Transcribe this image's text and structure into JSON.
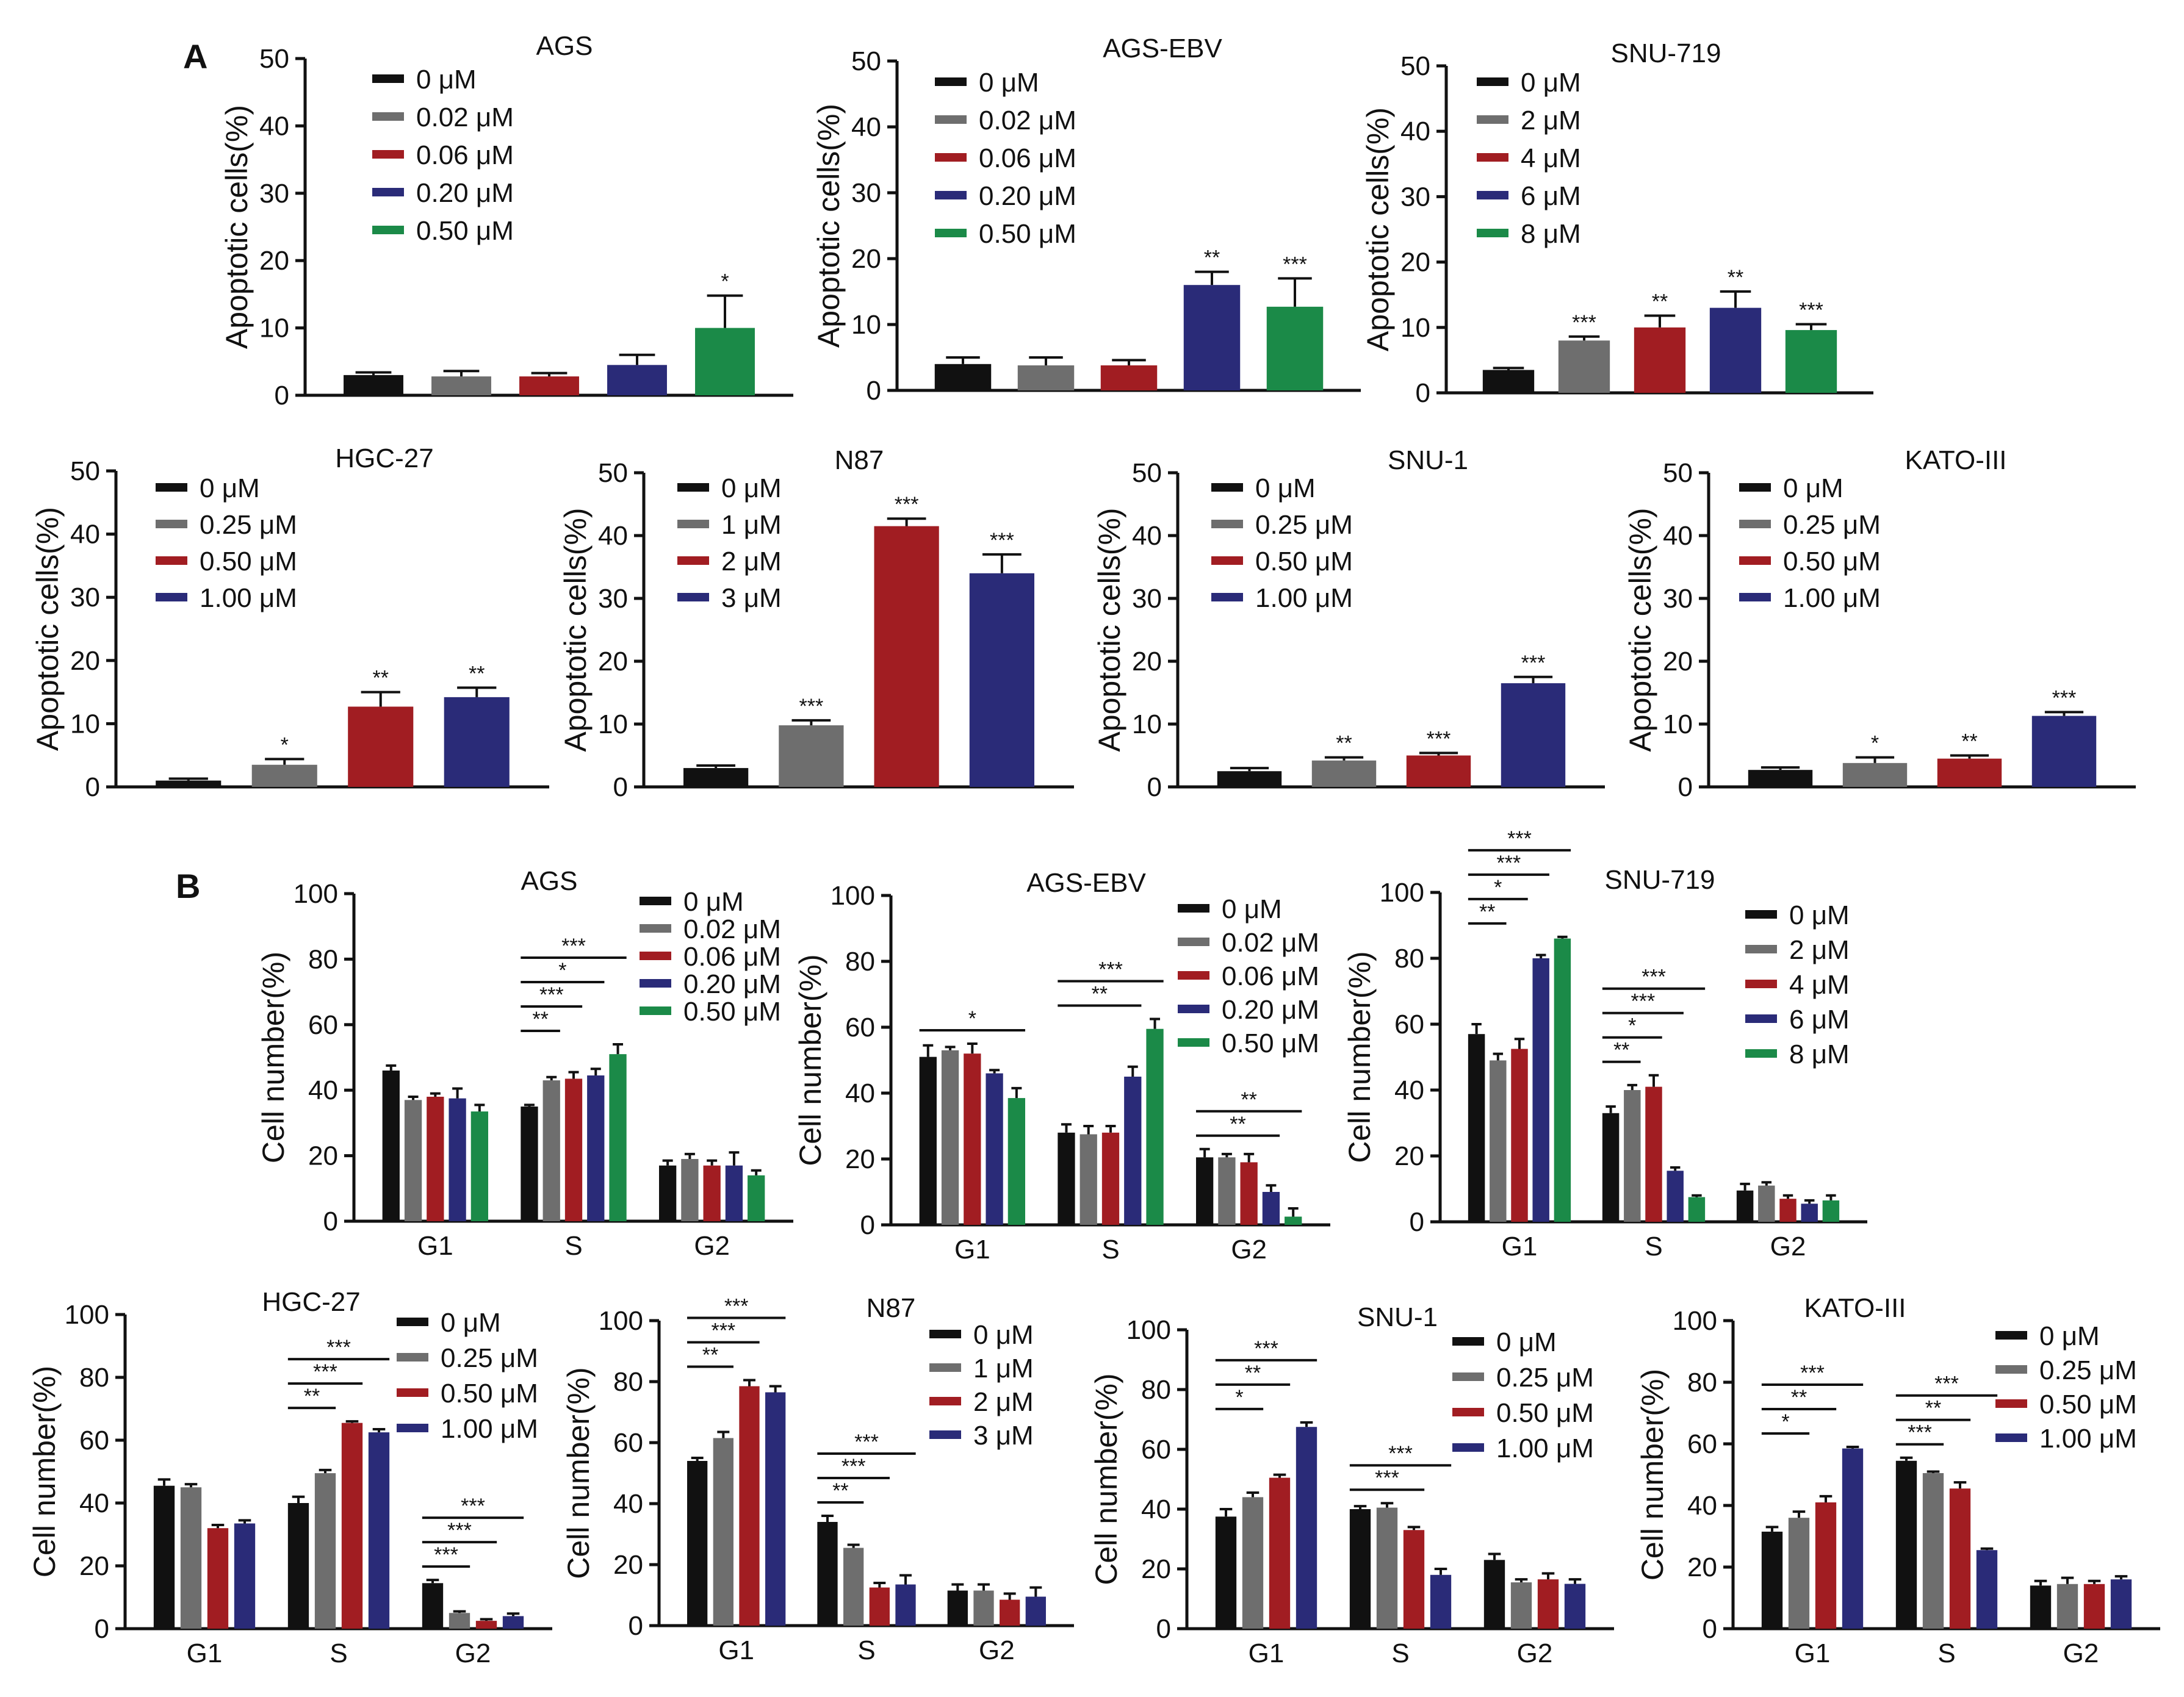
{
  "figure": {
    "panel_labels": [
      "A",
      "B"
    ],
    "colors": [
      "#111111",
      "#6e6e6e",
      "#a11d22",
      "#2a2b78",
      "#1b8a48"
    ]
  },
  "chart_data": [
    {
      "type": "bar",
      "panel": "A",
      "title": "AGS",
      "ylabel": "Apoptotic cells(%)",
      "ylim": [
        0,
        50
      ],
      "yticks": [
        0,
        10,
        20,
        30,
        40,
        50
      ],
      "legend": [
        "0 μM",
        "0.02 μM",
        "0.06 μM",
        "0.20 μM",
        "0.50 μM"
      ],
      "values": [
        3,
        2.8,
        2.8,
        4.5,
        10
      ],
      "errors": [
        0.4,
        0.8,
        0.5,
        1.5,
        4.8
      ],
      "annotations": [
        "",
        "",
        "",
        "",
        "*"
      ]
    },
    {
      "type": "bar",
      "panel": "A",
      "title": "AGS-EBV",
      "ylabel": "Apoptotic cells(%)",
      "ylim": [
        0,
        50
      ],
      "yticks": [
        0,
        10,
        20,
        30,
        40,
        50
      ],
      "legend": [
        "0 μM",
        "0.02 μM",
        "0.06 μM",
        "0.20 μM",
        "0.50 μM"
      ],
      "values": [
        4,
        3.8,
        3.8,
        16,
        12.7
      ],
      "errors": [
        1,
        1.2,
        0.8,
        2,
        4.3
      ],
      "annotations": [
        "",
        "",
        "",
        "**",
        "***"
      ]
    },
    {
      "type": "bar",
      "panel": "A",
      "title": "SNU-719",
      "ylabel": "Apoptotic cells(%)",
      "ylim": [
        0,
        50
      ],
      "yticks": [
        0,
        10,
        20,
        30,
        40,
        50
      ],
      "legend": [
        "0 μM",
        "2 μM",
        "4 μM",
        "6 μM",
        "8 μM"
      ],
      "values": [
        3.5,
        8,
        10,
        13,
        9.6
      ],
      "errors": [
        0.3,
        0.6,
        1.8,
        2.5,
        0.9
      ],
      "annotations": [
        "",
        "***",
        "**",
        "**",
        "***"
      ]
    },
    {
      "type": "bar",
      "panel": "A",
      "title": "HGC-27",
      "ylabel": "Apoptotic cells(%)",
      "ylim": [
        0,
        50
      ],
      "yticks": [
        0,
        10,
        20,
        30,
        40,
        50
      ],
      "legend": [
        "0 μM",
        "0.25 μM",
        "0.50 μM",
        "1.00 μM"
      ],
      "values": [
        1,
        3.5,
        12.7,
        14.2
      ],
      "errors": [
        0.3,
        0.9,
        2.3,
        1.5
      ],
      "annotations": [
        "",
        "*",
        "**",
        "**"
      ]
    },
    {
      "type": "bar",
      "panel": "A",
      "title": "N87",
      "ylabel": "Apoptotic cells(%)",
      "ylim": [
        0,
        50
      ],
      "yticks": [
        0,
        10,
        20,
        30,
        40,
        50
      ],
      "legend": [
        "0 μM",
        "1 μM",
        "2 μM",
        "3 μM"
      ],
      "values": [
        3,
        9.8,
        41.5,
        34
      ],
      "errors": [
        0.4,
        0.8,
        1.2,
        3
      ],
      "annotations": [
        "",
        "***",
        "***",
        "***"
      ]
    },
    {
      "type": "bar",
      "panel": "A",
      "title": "SNU-1",
      "ylabel": "Apoptotic cells(%)",
      "ylim": [
        0,
        50
      ],
      "yticks": [
        0,
        10,
        20,
        30,
        40,
        50
      ],
      "legend": [
        "0 μM",
        "0.25 μM",
        "0.50 μM",
        "1.00 μM"
      ],
      "values": [
        2.5,
        4.2,
        5,
        16.5
      ],
      "errors": [
        0.5,
        0.5,
        0.4,
        1
      ],
      "annotations": [
        "",
        "**",
        "***",
        "***"
      ]
    },
    {
      "type": "bar",
      "panel": "A",
      "title": "KATO-III",
      "ylabel": "Apoptotic cells(%)",
      "ylim": [
        0,
        50
      ],
      "yticks": [
        0,
        10,
        20,
        30,
        40,
        50
      ],
      "legend": [
        "0 μM",
        "0.25 μM",
        "0.50 μM",
        "1.00 μM"
      ],
      "values": [
        2.7,
        3.8,
        4.5,
        11.3
      ],
      "errors": [
        0.4,
        0.9,
        0.5,
        0.6
      ],
      "annotations": [
        "",
        "*",
        "**",
        "***"
      ]
    },
    {
      "type": "bar",
      "panel": "B",
      "title": "AGS",
      "ylabel": "Cell number(%)",
      "ylim": [
        0,
        100
      ],
      "yticks": [
        0,
        20,
        40,
        60,
        80,
        100
      ],
      "categories": [
        "G1",
        "S",
        "G2"
      ],
      "series": [
        {
          "name": "0 μM",
          "values": [
            46,
            35,
            17
          ],
          "errors": [
            1.5,
            0.5,
            1.5
          ]
        },
        {
          "name": "0.02 μM",
          "values": [
            37,
            43,
            19
          ],
          "errors": [
            1,
            1,
            1.5
          ]
        },
        {
          "name": "0.06 μM",
          "values": [
            38,
            43.5,
            17
          ],
          "errors": [
            1,
            2,
            1.5
          ]
        },
        {
          "name": "0.20 μM",
          "values": [
            37.5,
            44.5,
            17
          ],
          "errors": [
            3,
            2,
            4
          ]
        },
        {
          "name": "0.50 μM",
          "values": [
            33.5,
            51,
            14
          ],
          "errors": [
            2,
            3,
            1.5
          ]
        }
      ],
      "brackets": [
        {
          "group": 1,
          "from": 0,
          "to": 1,
          "label": "**"
        },
        {
          "group": 1,
          "from": 0,
          "to": 2,
          "label": "***"
        },
        {
          "group": 1,
          "from": 0,
          "to": 3,
          "label": "*"
        },
        {
          "group": 1,
          "from": 0,
          "to": 4,
          "label": "***"
        }
      ]
    },
    {
      "type": "bar",
      "panel": "B",
      "title": "AGS-EBV",
      "ylabel": "Cell number(%)",
      "ylim": [
        0,
        100
      ],
      "yticks": [
        0,
        20,
        40,
        60,
        80,
        100
      ],
      "categories": [
        "G1",
        "S",
        "G2"
      ],
      "series": [
        {
          "name": "0 μM",
          "values": [
            51,
            28,
            20.5
          ],
          "errors": [
            3.5,
            2.5,
            2.5
          ]
        },
        {
          "name": "0.02 μM",
          "values": [
            53,
            27.5,
            20.5
          ],
          "errors": [
            1,
            2.5,
            1
          ]
        },
        {
          "name": "0.06 μM",
          "values": [
            52,
            28,
            19
          ],
          "errors": [
            3,
            2,
            2.5
          ]
        },
        {
          "name": "0.20 μM",
          "values": [
            46,
            45,
            10
          ],
          "errors": [
            1,
            3,
            2
          ]
        },
        {
          "name": "0.50 μM",
          "values": [
            38.5,
            59.5,
            2.5
          ],
          "errors": [
            3,
            3,
            2.5
          ]
        }
      ],
      "brackets": [
        {
          "group": 0,
          "from": 0,
          "to": 4,
          "label": "*"
        },
        {
          "group": 1,
          "from": 0,
          "to": 3,
          "label": "**"
        },
        {
          "group": 1,
          "from": 0,
          "to": 4,
          "label": "***"
        },
        {
          "group": 2,
          "from": 0,
          "to": 3,
          "label": "**"
        },
        {
          "group": 2,
          "from": 0,
          "to": 4,
          "label": "**"
        }
      ]
    },
    {
      "type": "bar",
      "panel": "B",
      "title": "SNU-719",
      "ylabel": "Cell number(%)",
      "ylim": [
        0,
        100
      ],
      "yticks": [
        0,
        20,
        40,
        60,
        80,
        100
      ],
      "categories": [
        "G1",
        "S",
        "G2"
      ],
      "series": [
        {
          "name": "0 μM",
          "values": [
            57,
            33,
            9.5
          ],
          "errors": [
            3,
            2,
            2
          ]
        },
        {
          "name": "2 μM",
          "values": [
            49,
            40,
            11
          ],
          "errors": [
            2,
            1.5,
            1
          ]
        },
        {
          "name": "4 μM",
          "values": [
            52.5,
            41,
            7
          ],
          "errors": [
            3,
            3.5,
            1
          ]
        },
        {
          "name": "6 μM",
          "values": [
            80,
            15.5,
            5.5
          ],
          "errors": [
            1,
            1,
            1
          ]
        },
        {
          "name": "8 μM",
          "values": [
            86,
            7.5,
            6.5
          ],
          "errors": [
            0.5,
            0.5,
            1.5
          ]
        }
      ],
      "brackets": [
        {
          "group": 0,
          "from": 0,
          "to": 1,
          "label": "**"
        },
        {
          "group": 0,
          "from": 0,
          "to": 2,
          "label": "*"
        },
        {
          "group": 0,
          "from": 0,
          "to": 3,
          "label": "***"
        },
        {
          "group": 0,
          "from": 0,
          "to": 4,
          "label": "***"
        },
        {
          "group": 1,
          "from": 0,
          "to": 1,
          "label": "**"
        },
        {
          "group": 1,
          "from": 0,
          "to": 2,
          "label": "*"
        },
        {
          "group": 1,
          "from": 0,
          "to": 3,
          "label": "***"
        },
        {
          "group": 1,
          "from": 0,
          "to": 4,
          "label": "***"
        }
      ]
    },
    {
      "type": "bar",
      "panel": "B",
      "title": "HGC-27",
      "ylabel": "Cell number(%)",
      "ylim": [
        0,
        100
      ],
      "yticks": [
        0,
        20,
        40,
        60,
        80,
        100
      ],
      "categories": [
        "G1",
        "S",
        "G2"
      ],
      "series": [
        {
          "name": "0 μM",
          "values": [
            45.5,
            40,
            14.5
          ],
          "errors": [
            2,
            2,
            1
          ]
        },
        {
          "name": "0.25 μM",
          "values": [
            45,
            49.5,
            5
          ],
          "errors": [
            1,
            1,
            0.5
          ]
        },
        {
          "name": "0.50 μM",
          "values": [
            32,
            65.5,
            2.5
          ],
          "errors": [
            1,
            0.5,
            0.5
          ]
        },
        {
          "name": "1.00 μM",
          "values": [
            33.5,
            62.5,
            4
          ],
          "errors": [
            1,
            1,
            0.8
          ]
        }
      ],
      "brackets": [
        {
          "group": 1,
          "from": 0,
          "to": 1,
          "label": "**"
        },
        {
          "group": 1,
          "from": 0,
          "to": 2,
          "label": "***"
        },
        {
          "group": 1,
          "from": 0,
          "to": 3,
          "label": "***"
        },
        {
          "group": 2,
          "from": 0,
          "to": 1,
          "label": "***"
        },
        {
          "group": 2,
          "from": 0,
          "to": 2,
          "label": "***"
        },
        {
          "group": 2,
          "from": 0,
          "to": 3,
          "label": "***"
        }
      ]
    },
    {
      "type": "bar",
      "panel": "B",
      "title": "N87",
      "ylabel": "Cell number(%)",
      "ylim": [
        0,
        100
      ],
      "yticks": [
        0,
        20,
        40,
        60,
        80,
        100
      ],
      "categories": [
        "G1",
        "S",
        "G2"
      ],
      "series": [
        {
          "name": "0 μM",
          "values": [
            54,
            34,
            11.5
          ],
          "errors": [
            1,
            2,
            2
          ]
        },
        {
          "name": "1 μM",
          "values": [
            61.5,
            25.5,
            11.5
          ],
          "errors": [
            2,
            1,
            2
          ]
        },
        {
          "name": "2 μM",
          "values": [
            78.5,
            12.5,
            8.5
          ],
          "errors": [
            2,
            1.5,
            2
          ]
        },
        {
          "name": "3 μM",
          "values": [
            76.5,
            13.5,
            9.5
          ],
          "errors": [
            2,
            3,
            3
          ]
        }
      ],
      "brackets": [
        {
          "group": 0,
          "from": 0,
          "to": 1,
          "label": "**"
        },
        {
          "group": 0,
          "from": 0,
          "to": 2,
          "label": "***"
        },
        {
          "group": 0,
          "from": 0,
          "to": 3,
          "label": "***"
        },
        {
          "group": 1,
          "from": 0,
          "to": 1,
          "label": "**"
        },
        {
          "group": 1,
          "from": 0,
          "to": 2,
          "label": "***"
        },
        {
          "group": 1,
          "from": 0,
          "to": 3,
          "label": "***"
        }
      ]
    },
    {
      "type": "bar",
      "panel": "B",
      "title": "SNU-1",
      "ylabel": "Cell number(%)",
      "ylim": [
        0,
        100
      ],
      "yticks": [
        0,
        20,
        40,
        60,
        80,
        100
      ],
      "categories": [
        "G1",
        "S",
        "G2"
      ],
      "series": [
        {
          "name": "0 μM",
          "values": [
            37.5,
            40,
            23
          ],
          "errors": [
            2.5,
            1,
            2
          ]
        },
        {
          "name": "0.25 μM",
          "values": [
            44,
            40.5,
            15.5
          ],
          "errors": [
            1.5,
            1.5,
            1
          ]
        },
        {
          "name": "0.50 μM",
          "values": [
            50.5,
            33,
            16.5
          ],
          "errors": [
            1,
            1,
            2
          ]
        },
        {
          "name": "1.00 μM",
          "values": [
            67.5,
            18,
            15
          ],
          "errors": [
            1.5,
            2,
            1.5
          ]
        }
      ],
      "brackets": [
        {
          "group": 0,
          "from": 0,
          "to": 1,
          "label": "*"
        },
        {
          "group": 0,
          "from": 0,
          "to": 2,
          "label": "**"
        },
        {
          "group": 0,
          "from": 0,
          "to": 3,
          "label": "***"
        },
        {
          "group": 1,
          "from": 0,
          "to": 2,
          "label": "***"
        },
        {
          "group": 1,
          "from": 0,
          "to": 3,
          "label": "***"
        }
      ]
    },
    {
      "type": "bar",
      "panel": "B",
      "title": "KATO-III",
      "ylabel": "Cell number(%)",
      "ylim": [
        0,
        100
      ],
      "yticks": [
        0,
        20,
        40,
        60,
        80,
        100
      ],
      "categories": [
        "G1",
        "S",
        "G2"
      ],
      "series": [
        {
          "name": "0 μM",
          "values": [
            31.5,
            54.5,
            14
          ],
          "errors": [
            1.5,
            1,
            1.5
          ]
        },
        {
          "name": "0.25 μM",
          "values": [
            36,
            50.5,
            14.5
          ],
          "errors": [
            2,
            0.5,
            2
          ]
        },
        {
          "name": "0.50 μM",
          "values": [
            41,
            45.5,
            14.5
          ],
          "errors": [
            2,
            2,
            1
          ]
        },
        {
          "name": "1.00 μM",
          "values": [
            58.5,
            25.5,
            16
          ],
          "errors": [
            0.5,
            0.5,
            1
          ]
        }
      ],
      "brackets": [
        {
          "group": 0,
          "from": 0,
          "to": 1,
          "label": "*"
        },
        {
          "group": 0,
          "from": 0,
          "to": 2,
          "label": "**"
        },
        {
          "group": 0,
          "from": 0,
          "to": 3,
          "label": "***"
        },
        {
          "group": 1,
          "from": 0,
          "to": 1,
          "label": "***"
        },
        {
          "group": 1,
          "from": 0,
          "to": 2,
          "label": "**"
        },
        {
          "group": 1,
          "from": 0,
          "to": 3,
          "label": "***"
        }
      ]
    }
  ]
}
